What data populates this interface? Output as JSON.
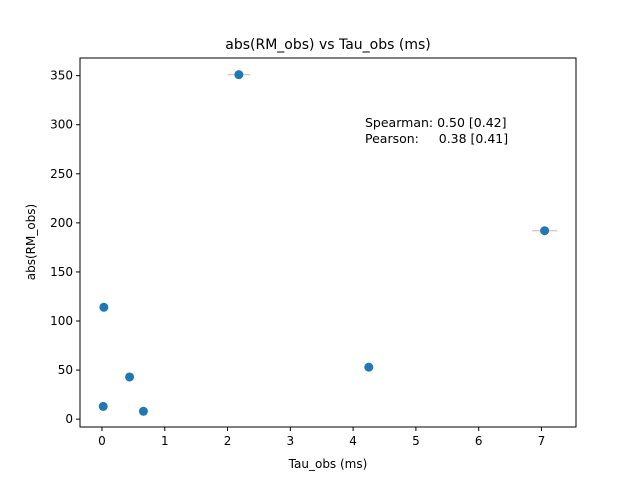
{
  "chart_data": {
    "type": "scatter",
    "title": "abs(RM_obs) vs Tau_obs (ms)",
    "xlabel": "Tau_obs (ms)",
    "ylabel": "abs(RM_obs)",
    "xlim": [
      -0.35,
      7.55
    ],
    "ylim": [
      -8,
      368
    ],
    "xticks": [
      0,
      1,
      2,
      3,
      4,
      5,
      6,
      7
    ],
    "yticks": [
      0,
      50,
      100,
      150,
      200,
      250,
      300,
      350
    ],
    "grid": false,
    "points": [
      {
        "x": 2.18,
        "y": 351,
        "xerr": 0.18
      },
      {
        "x": 7.05,
        "y": 192,
        "xerr": 0.2
      },
      {
        "x": 0.03,
        "y": 114,
        "xerr": 0
      },
      {
        "x": 4.25,
        "y": 53,
        "xerr": 0
      },
      {
        "x": 0.44,
        "y": 43,
        "xerr": 0
      },
      {
        "x": 0.02,
        "y": 13,
        "xerr": 0
      },
      {
        "x": 0.66,
        "y": 8,
        "xerr": 0
      }
    ],
    "colors": {
      "marker": "#1f77b4",
      "errorbar": "#f4b6b6",
      "axes": "#000000"
    },
    "annotations": [
      "Spearman: 0.50 [0.42]",
      "Pearson:     0.38 [0.41]"
    ]
  }
}
